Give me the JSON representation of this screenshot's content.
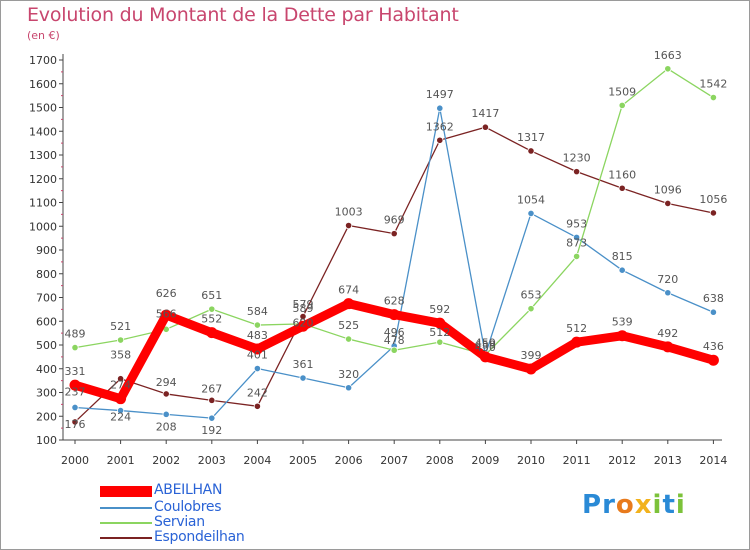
{
  "chart_data": {
    "type": "line",
    "title": "Evolution du Montant de la Dette par Habitant",
    "subtitle": "(en €)",
    "xlabel": "",
    "ylabel": "(en €)",
    "x": [
      "2000",
      "2001",
      "2002",
      "2003",
      "2004",
      "2005",
      "2006",
      "2007",
      "2008",
      "2009",
      "2010",
      "2011",
      "2012",
      "2013",
      "2014"
    ],
    "yticks": [
      "100",
      "200",
      "300",
      "400",
      "500",
      "600",
      "700",
      "800",
      "900",
      "1000",
      "1100",
      "1200",
      "1300",
      "1400",
      "1500",
      "1600",
      "1700"
    ],
    "ylim": [
      100,
      1700
    ],
    "grid": false,
    "legend_position": "bottom-left",
    "series": [
      {
        "name": "Espondeilhan",
        "color": "#7b2323",
        "values": [
          176,
          358,
          294,
          267,
          242,
          620,
          1003,
          969,
          1362,
          1417,
          1317,
          1230,
          1160,
          1096,
          1056
        ],
        "labels": [
          "176",
          "358",
          "294",
          "267",
          "242",
          "620",
          "1003",
          "969",
          "1362",
          "1417",
          "1317",
          "1230",
          "1160",
          "1096",
          "1056"
        ]
      },
      {
        "name": "Coulobres",
        "color": "#4a90c8",
        "values": [
          237,
          224,
          208,
          192,
          401,
          361,
          320,
          496,
          1497,
          459,
          1054,
          953,
          815,
          720,
          638
        ],
        "labels": [
          "237",
          "224",
          "208",
          "192",
          "401",
          "361",
          "320",
          "496",
          "1497",
          "459",
          "1054",
          "953",
          "815",
          "720",
          "638"
        ]
      },
      {
        "name": "Servian",
        "color": "#8bd560",
        "values": [
          489,
          521,
          566,
          651,
          584,
          589,
          525,
          478,
          512,
          459,
          653,
          873,
          1509,
          1663,
          1542
        ],
        "labels": [
          "489",
          "521",
          "566",
          "651",
          "584",
          "589",
          "525",
          "478",
          "512",
          "459",
          "653",
          "873",
          "1509",
          "1663",
          "1542"
        ]
      },
      {
        "name": "ABEILHAN",
        "color": "#ff0000",
        "values": [
          331,
          274,
          626,
          552,
          483,
          579,
          674,
          628,
          592,
          450,
          399,
          512,
          539,
          492,
          436
        ],
        "labels": [
          "331",
          "274",
          "626",
          "552",
          "483",
          "579",
          "674",
          "628",
          "592",
          "450",
          "399",
          "512",
          "539",
          "492",
          "436"
        ]
      }
    ]
  },
  "legend": {
    "items": [
      {
        "name": "ABEILHAN",
        "color": "#ff0000"
      },
      {
        "name": "Coulobres",
        "color": "#4a90c8"
      },
      {
        "name": "Servian",
        "color": "#8bd560"
      },
      {
        "name": "Espondeilhan",
        "color": "#7b2323"
      }
    ]
  },
  "logo": {
    "text": "Proxiti",
    "letters": [
      "P",
      "r",
      "o",
      "x",
      "i",
      "t",
      "i"
    ]
  }
}
